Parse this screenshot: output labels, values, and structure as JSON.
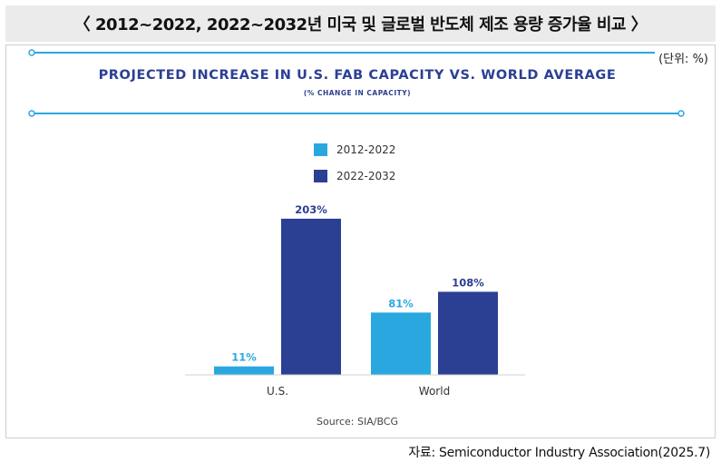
{
  "header": {
    "title": "〈 2012~2022, 2022~2032년 미국 및 글로벌 반도체 제조 용량 증가율 비교 〉"
  },
  "unit_label": "(단위: %)",
  "footer_source": "자료: Semiconductor Industry Association(2025.7)",
  "colors": {
    "series1": "#29a8e0",
    "series2": "#2b3f93",
    "title": "#2b3f93",
    "line": "#29a8e0"
  },
  "chart_data": {
    "type": "bar",
    "title": "PROJECTED INCREASE IN U.S. FAB CAPACITY VS. WORLD AVERAGE",
    "subtitle": "(% CHANGE IN CAPACITY)",
    "categories": [
      "U.S.",
      "World"
    ],
    "series": [
      {
        "name": "2012-2022",
        "values": [
          11,
          81
        ],
        "labels": [
          "11%",
          "81%"
        ]
      },
      {
        "name": "2022-2032",
        "values": [
          203,
          108
        ],
        "labels": [
          "203%",
          "108%"
        ]
      }
    ],
    "ylim": [
      0,
      210
    ],
    "source": "Source: SIA/BCG"
  }
}
